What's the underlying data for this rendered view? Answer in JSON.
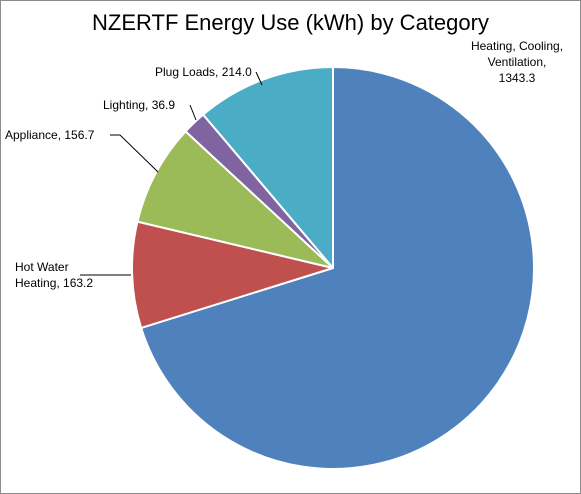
{
  "chart_data": {
    "type": "pie",
    "title": "NZERTF Energy Use (kWh) by Category",
    "slices": [
      {
        "name": "Heating, Cooling, Ventilation",
        "value": 1343.3,
        "label_lines": [
          "Heating, Cooling,",
          "Ventilation,",
          "1343.3"
        ],
        "color": "#4F81BD"
      },
      {
        "name": "Hot Water Heating",
        "value": 163.2,
        "label_lines": [
          "Hot Water",
          "Heating, 163.2"
        ],
        "color": "#C0504D"
      },
      {
        "name": "Appliance",
        "value": 156.7,
        "label_lines": [
          "Appliance, 156.7"
        ],
        "color": "#9BBB59"
      },
      {
        "name": "Lighting",
        "value": 36.9,
        "label_lines": [
          "Lighting, 36.9"
        ],
        "color": "#8064A2"
      },
      {
        "name": "Plug Loads",
        "value": 214.0,
        "label_lines": [
          "Plug Loads, 214.0"
        ],
        "color": "#4BACC6"
      }
    ],
    "legend": "none"
  }
}
